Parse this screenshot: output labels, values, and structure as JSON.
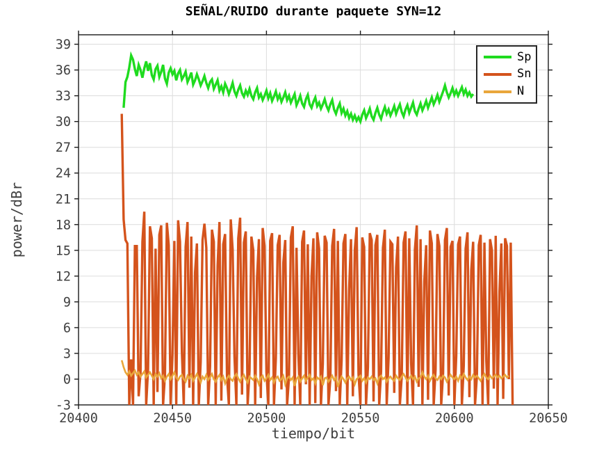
{
  "chart_data": {
    "type": "line",
    "title": "SEÑAL/RUIDO durante paquete SYN=12",
    "xlabel": "tiempo/bit",
    "ylabel": "power/dBr",
    "xlim": [
      20400,
      20650
    ],
    "ylim": [
      -3,
      40.1
    ],
    "xticks": [
      20400,
      20450,
      20500,
      20550,
      20600,
      20650
    ],
    "yticks": [
      -3,
      0,
      3,
      6,
      9,
      12,
      15,
      18,
      21,
      24,
      27,
      30,
      33,
      36,
      39
    ],
    "grid": true,
    "legend_position": "top-right",
    "colors": {
      "background": "#ffffff",
      "grid": "#dcdcdc",
      "axis": "#1a1a1a",
      "tick_label": "#3f3f3f",
      "title": "#000000"
    },
    "series": [
      {
        "name": "Sp",
        "color": "#1fdb1f",
        "x_start": 20424,
        "x_step": 1,
        "values": [
          31.6,
          34.6,
          35.2,
          36.3,
          37.7,
          37.2,
          36.1,
          35.3,
          36.6,
          36.0,
          35.1,
          36.2,
          37.0,
          35.9,
          36.8,
          35.4,
          34.9,
          36.1,
          36.5,
          35.2,
          35.8,
          36.6,
          35.0,
          34.4,
          35.7,
          36.2,
          35.5,
          35.9,
          34.8,
          35.6,
          36.0,
          34.9,
          35.3,
          35.8,
          34.6,
          35.1,
          35.7,
          34.3,
          34.8,
          35.5,
          34.9,
          34.2,
          34.7,
          35.3,
          34.5,
          33.9,
          34.6,
          34.9,
          33.8,
          34.3,
          34.8,
          33.6,
          34.1,
          33.4,
          34.4,
          33.9,
          33.2,
          33.8,
          34.5,
          33.5,
          33.0,
          33.7,
          34.2,
          33.3,
          32.9,
          33.6,
          33.1,
          33.8,
          33.0,
          32.6,
          33.4,
          33.9,
          32.8,
          33.2,
          32.5,
          33.0,
          33.6,
          32.7,
          33.3,
          32.4,
          32.9,
          33.5,
          32.6,
          33.1,
          32.3,
          32.8,
          33.4,
          32.5,
          33.0,
          32.2,
          32.7,
          33.2,
          31.9,
          32.4,
          33.0,
          32.1,
          31.7,
          32.6,
          33.1,
          32.0,
          31.6,
          32.3,
          32.8,
          31.8,
          32.2,
          31.5,
          32.0,
          32.6,
          31.8,
          31.3,
          32.0,
          32.5,
          31.4,
          30.9,
          31.6,
          32.1,
          31.0,
          31.5,
          30.7,
          31.2,
          30.4,
          30.9,
          30.2,
          30.7,
          30.1,
          30.5,
          30.0,
          30.8,
          31.3,
          30.4,
          30.9,
          31.5,
          30.6,
          30.2,
          31.0,
          31.6,
          30.8,
          30.3,
          31.1,
          31.7,
          30.9,
          31.4,
          30.7,
          31.2,
          31.8,
          30.9,
          31.5,
          32.0,
          31.1,
          30.6,
          31.4,
          31.9,
          31.0,
          31.6,
          32.2,
          31.2,
          30.8,
          31.5,
          32.1,
          31.3,
          31.8,
          32.4,
          31.6,
          32.2,
          32.8,
          32.0,
          32.5,
          33.1,
          32.3,
          32.9,
          33.5,
          34.2,
          33.4,
          32.8,
          33.3,
          33.9,
          33.1,
          33.6,
          33.0,
          33.5,
          34.0,
          33.2,
          33.7,
          33.0,
          33.4,
          32.9,
          33.2
        ]
      },
      {
        "name": "Sn",
        "color": "#d4531c",
        "x_start": 20423,
        "x_step": 1,
        "values": [
          30.9,
          18.6,
          16.2,
          15.8,
          -3,
          2.3,
          -3,
          15.5,
          15.5,
          -2.0,
          0.8,
          16.0,
          19.5,
          -3,
          1.2,
          17.8,
          16.4,
          -3,
          15.2,
          -1.5,
          16.8,
          17.9,
          -3,
          0.5,
          18.2,
          15.6,
          -3,
          2.8,
          16.1,
          -3,
          18.5,
          16.0,
          3.2,
          -3,
          15.4,
          18.3,
          -1.0,
          16.6,
          -3,
          12.4,
          15.8,
          -3,
          2.0,
          16.2,
          18.1,
          15.3,
          -3,
          1.5,
          17.4,
          16.0,
          -3,
          13.2,
          18.3,
          -2.5,
          15.7,
          16.9,
          0.4,
          -3,
          18.6,
          15.1,
          2.6,
          -3,
          16.4,
          18.8,
          -1.8,
          15.9,
          17.2,
          -3,
          1.0,
          16.6,
          15.0,
          -3,
          11.8,
          16.3,
          -2.2,
          17.6,
          15.5,
          0.8,
          -3,
          16.1,
          17.0,
          -3,
          2.4,
          15.6,
          16.8,
          -1.2,
          13.6,
          16.2,
          -3,
          0.2,
          16.5,
          17.8,
          -3,
          15.3,
          2.9,
          -3,
          16.0,
          17.3,
          -0.6,
          15.7,
          -3,
          12.0,
          16.4,
          -2.8,
          17.1,
          15.2,
          -3,
          1.8,
          16.7,
          15.9,
          -3,
          0.0,
          15.5,
          17.5,
          -1.4,
          16.1,
          -3,
          2.2,
          15.8,
          16.9,
          -3,
          10.5,
          16.3,
          -2.0,
          15.0,
          17.7,
          0.6,
          -3,
          16.5,
          15.4,
          -3,
          1.4,
          17.0,
          16.2,
          -2.6,
          15.6,
          16.8,
          -3,
          0.9,
          15.3,
          17.4,
          -3,
          2.5,
          16.0,
          15.7,
          -1.6,
          13.0,
          16.6,
          -3,
          0.3,
          15.9,
          17.2,
          -3,
          16.4,
          1.9,
          -3,
          15.1,
          17.9,
          -0.9,
          16.3,
          -3,
          11.4,
          15.6,
          -2.4,
          17.3,
          15.8,
          -3,
          1.1,
          16.9,
          15.5,
          -3,
          0.7,
          16.2,
          17.6,
          -1.9,
          15.4,
          16.1,
          -3,
          2.7,
          15.7,
          16.6,
          -3,
          1.6,
          15.2,
          17.1,
          -2.1,
          12.7,
          16.0,
          -3,
          0.4,
          15.6,
          16.8,
          -3,
          15.9,
          2.1,
          -3,
          16.3,
          15.0,
          -1.1,
          16.7,
          -3,
          10.2,
          15.8,
          -2.3,
          16.4,
          15.5,
          0.0,
          15.9,
          -3
        ]
      },
      {
        "name": "N",
        "color": "#e9a63b",
        "x_start": 20423,
        "x_step": 1,
        "values": [
          2.2,
          1.4,
          0.8,
          0.5,
          0.9,
          0.4,
          0.7,
          1.0,
          0.5,
          0.8,
          0.3,
          0.6,
          0.9,
          0.2,
          0.5,
          0.8,
          0.4,
          0.0,
          0.6,
          0.3,
          0.7,
          0.1,
          0.4,
          -0.2,
          0.3,
          0.6,
          0.0,
          0.4,
          0.8,
          0.2,
          -0.1,
          0.3,
          0.5,
          0.0,
          -0.3,
          0.4,
          0.1,
          0.5,
          -0.2,
          0.2,
          0.6,
          0.1,
          -0.4,
          0.3,
          0.0,
          0.5,
          -0.1,
          0.2,
          0.6,
          0.0,
          -0.3,
          0.2,
          0.5,
          -0.1,
          0.3,
          -0.5,
          0.1,
          0.4,
          0.0,
          -0.2,
          0.3,
          0.6,
          0.1,
          -0.3,
          0.2,
          0.5,
          0.0,
          -0.4,
          0.3,
          0.1,
          -0.1,
          0.4,
          0.0,
          -0.6,
          0.2,
          0.4,
          -0.2,
          0.1,
          0.5,
          -0.1,
          0.2,
          -0.4,
          0.1,
          0.3,
          -0.2,
          0.0,
          0.4,
          -0.6,
          0.1,
          0.3,
          -0.1,
          0.2,
          -0.8,
          0.0,
          0.3,
          -0.3,
          0.1,
          0.4,
          -0.2,
          0.2,
          0.5,
          -0.1,
          0.1,
          -0.5,
          0.2,
          0.0,
          0.3,
          -0.7,
          0.1,
          0.2,
          -0.3,
          0.0,
          0.4,
          -0.1,
          0.2,
          -0.9,
          -0.2,
          0.3,
          0.0,
          -0.4,
          0.1,
          0.3,
          -0.1,
          0.2,
          -0.6,
          0.0,
          0.2,
          0.4,
          -0.2,
          0.1,
          -0.4,
          0.2,
          0.0,
          0.3,
          -0.1,
          0.1,
          -0.5,
          0.2,
          0.4,
          0.0,
          0.2,
          -0.3,
          0.1,
          0.3,
          0.0,
          -0.2,
          0.4,
          0.1,
          -0.1,
          0.3,
          0.6,
          0.2,
          -0.2,
          0.1,
          0.4,
          0.0,
          0.3,
          -0.3,
          0.1,
          0.2,
          0.8,
          0.3,
          0.0,
          0.4,
          -0.2,
          0.2,
          0.5,
          0.1,
          -0.1,
          0.3,
          0.0,
          0.4,
          0.2,
          -0.3,
          0.1,
          0.5,
          0.2,
          0.0,
          0.3,
          -0.2,
          0.4,
          0.1,
          0.6,
          0.2,
          -0.1,
          0.3,
          0.0,
          0.5,
          0.2,
          0.4,
          0.1,
          -0.2,
          0.3,
          0.6,
          0.2,
          0.0,
          0.4,
          0.1,
          0.3,
          0.5,
          0.2,
          0.4,
          0.1,
          0.3,
          0.5,
          0.2,
          0.4
        ]
      }
    ]
  }
}
